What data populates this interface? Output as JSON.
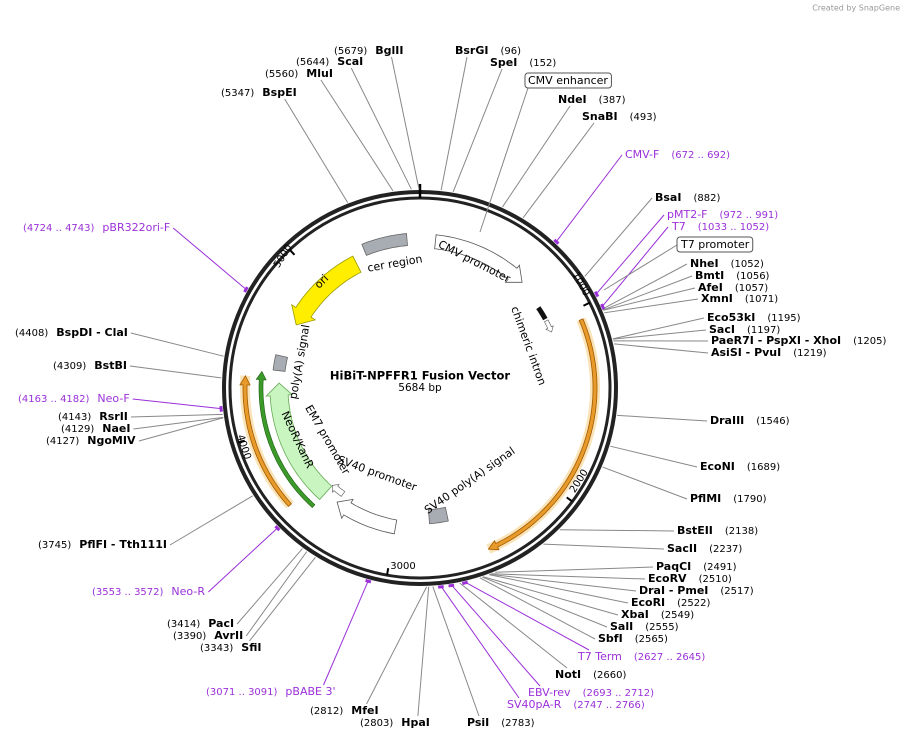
{
  "branding": "Created by SnapGene",
  "map": {
    "title": "HiBiT-NPFFR1 Fusion Vector",
    "length": "5684 bp",
    "ticks": [
      "1000",
      "2000",
      "3000",
      "4000",
      "5000"
    ],
    "sites": [
      {
        "name": "BglII",
        "position": "(5679)"
      },
      {
        "name": "ScaI",
        "position": "(5644)"
      },
      {
        "name": "MluI",
        "position": "(5560)"
      },
      {
        "name": "BspEI",
        "position": "(5347)"
      },
      {
        "name": "BsrGI",
        "position": "(96)"
      },
      {
        "name": "SpeI",
        "position": "(152)"
      },
      {
        "name": "NdeI",
        "position": "(387)"
      },
      {
        "name": "SnaBI",
        "position": "(493)"
      },
      {
        "name": "BsaI",
        "position": "(882)"
      },
      {
        "name": "NheI",
        "position": "(1052)"
      },
      {
        "name": "BmtI",
        "position": "(1056)"
      },
      {
        "name": "AfeI",
        "position": "(1057)"
      },
      {
        "name": "XmnI",
        "position": "(1071)"
      },
      {
        "name": "Eco53kI",
        "position": "(1195)"
      },
      {
        "name": "SacI",
        "position": "(1197)"
      },
      {
        "name": "PaeR7I - PspXI - XhoI",
        "position": "(1205)"
      },
      {
        "name": "AsiSI - PvuI",
        "position": "(1219)"
      },
      {
        "name": "DraIII",
        "position": "(1546)"
      },
      {
        "name": "EcoNI",
        "position": "(1689)"
      },
      {
        "name": "PflMI",
        "position": "(1790)"
      },
      {
        "name": "BstEII",
        "position": "(2138)"
      },
      {
        "name": "SacII",
        "position": "(2237)"
      },
      {
        "name": "PaqCI",
        "position": "(2491)"
      },
      {
        "name": "EcoRV",
        "position": "(2510)"
      },
      {
        "name": "DraI - PmeI",
        "position": "(2517)"
      },
      {
        "name": "EcoRI",
        "position": "(2522)"
      },
      {
        "name": "XbaI",
        "position": "(2549)"
      },
      {
        "name": "SalI",
        "position": "(2555)"
      },
      {
        "name": "SbfI",
        "position": "(2565)"
      },
      {
        "name": "NotI",
        "position": "(2660)"
      },
      {
        "name": "PsiI",
        "position": "(2783)"
      },
      {
        "name": "HpaI",
        "position": "(2803)"
      },
      {
        "name": "MfeI",
        "position": "(2812)"
      },
      {
        "name": "SfiI",
        "position": "(3343)"
      },
      {
        "name": "AvrII",
        "position": "(3390)"
      },
      {
        "name": "PacI",
        "position": "(3414)"
      },
      {
        "name": "PflFI - Tth111I",
        "position": "(3745)"
      },
      {
        "name": "NgoMIV",
        "position": "(4127)"
      },
      {
        "name": "NaeI",
        "position": "(4129)"
      },
      {
        "name": "RsrII",
        "position": "(4143)"
      },
      {
        "name": "BstBI",
        "position": "(4309)"
      },
      {
        "name": "BspDI - ClaI",
        "position": "(4408)"
      }
    ],
    "primers": [
      {
        "name": "CMV-F",
        "position": "(672 .. 692)"
      },
      {
        "name": "pMT2-F",
        "position": "(972 .. 991)"
      },
      {
        "name": "T7",
        "position": "(1033 .. 1052)"
      },
      {
        "name": "T7 Term",
        "position": "(2627 .. 2645)"
      },
      {
        "name": "EBV-rev",
        "position": "(2693 .. 2712)"
      },
      {
        "name": "SV40pA-R",
        "position": "(2747 .. 2766)"
      },
      {
        "name": "pBABE 3'",
        "position": "(3071 .. 3091)"
      },
      {
        "name": "Neo-R",
        "position": "(3553 .. 3572)"
      },
      {
        "name": "Neo-F",
        "position": "(4163 .. 4182)"
      },
      {
        "name": "pBR322ori-F",
        "position": "(4724 .. 4743)"
      }
    ],
    "boxed_features": [
      "CMV enhancer",
      "T7 promoter"
    ],
    "features": [
      "ori",
      "cer region",
      "CMV promoter",
      "chimeric intron",
      "poly(A) signal",
      "NeoR/KanR",
      "EM7 promoter",
      "SV40 promoter",
      "SV40 poly(A) signal"
    ]
  }
}
